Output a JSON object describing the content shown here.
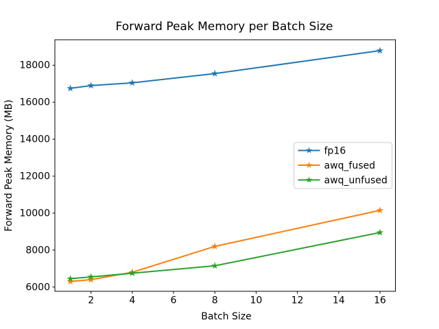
{
  "chart_data": {
    "type": "line",
    "title": "Forward Peak Memory per Batch Size",
    "xlabel": "Batch Size",
    "ylabel": "Forward Peak Memory (MB)",
    "x": [
      1,
      2,
      4,
      8,
      16
    ],
    "series": [
      {
        "name": "fp16",
        "color": "#1f77b4",
        "values": [
          16750,
          16900,
          17050,
          17550,
          18790
        ]
      },
      {
        "name": "awq_fused",
        "color": "#ff7f0e",
        "values": [
          6300,
          6400,
          6800,
          8200,
          10150
        ]
      },
      {
        "name": "awq_unfused",
        "color": "#2ca02c",
        "values": [
          6450,
          6550,
          6750,
          7150,
          8950
        ]
      }
    ],
    "marker": "star",
    "xticks": [
      2,
      4,
      6,
      8,
      10,
      12,
      14,
      16
    ],
    "yticks": [
      6000,
      8000,
      10000,
      12000,
      14000,
      16000,
      18000
    ],
    "xlim": [
      0.25,
      16.75
    ],
    "ylim": [
      5770,
      19380
    ],
    "grid": false,
    "legend": {
      "position": "center-right",
      "entries": [
        "fp16",
        "awq_fused",
        "awq_unfused"
      ],
      "border_color": "#cccccc",
      "background": "#ffffff"
    },
    "background": "#ffffff",
    "spine_color": "#000000"
  }
}
